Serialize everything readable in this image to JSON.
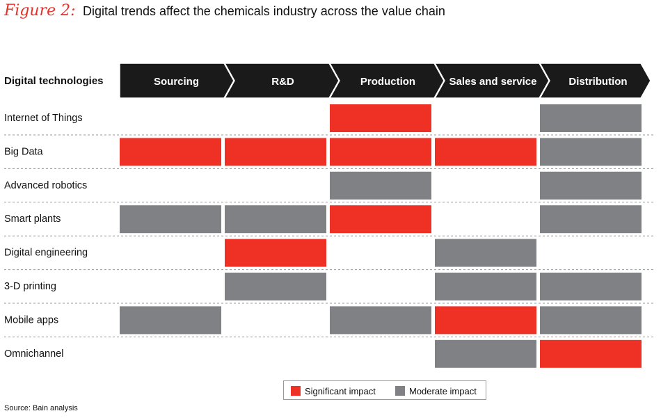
{
  "figure": {
    "label": "Figure 2:",
    "title": "Digital trends affect the chemicals industry across the value chain"
  },
  "chart_data": {
    "type": "table",
    "row_header": "Digital technologies",
    "columns": [
      "Sourcing",
      "R&D",
      "Production",
      "Sales and service",
      "Distribution"
    ],
    "rows": [
      {
        "label": "Internet of Things",
        "cells": [
          "",
          "",
          "significant",
          "",
          "moderate"
        ]
      },
      {
        "label": "Big Data",
        "cells": [
          "significant",
          "significant",
          "significant",
          "significant",
          "moderate"
        ]
      },
      {
        "label": "Advanced robotics",
        "cells": [
          "",
          "",
          "moderate",
          "",
          "moderate"
        ]
      },
      {
        "label": "Smart plants",
        "cells": [
          "moderate",
          "moderate",
          "significant",
          "",
          "moderate"
        ]
      },
      {
        "label": "Digital engineering",
        "cells": [
          "",
          "significant",
          "",
          "moderate",
          ""
        ]
      },
      {
        "label": "3-D printing",
        "cells": [
          "",
          "moderate",
          "",
          "moderate",
          "moderate"
        ]
      },
      {
        "label": "Mobile apps",
        "cells": [
          "moderate",
          "",
          "moderate",
          "significant",
          "moderate"
        ]
      },
      {
        "label": "Omnichannel",
        "cells": [
          "",
          "",
          "",
          "moderate",
          "significant"
        ]
      }
    ],
    "legend": [
      {
        "key": "significant",
        "label": "Significant impact"
      },
      {
        "key": "moderate",
        "label": "Moderate impact"
      }
    ]
  },
  "colors": {
    "significant": "#ee3124",
    "moderate": "#808184",
    "header_bg": "#1a1a1a",
    "header_text": "#ffffff",
    "accent": "#e8302a"
  },
  "source": "Source: Bain analysis"
}
